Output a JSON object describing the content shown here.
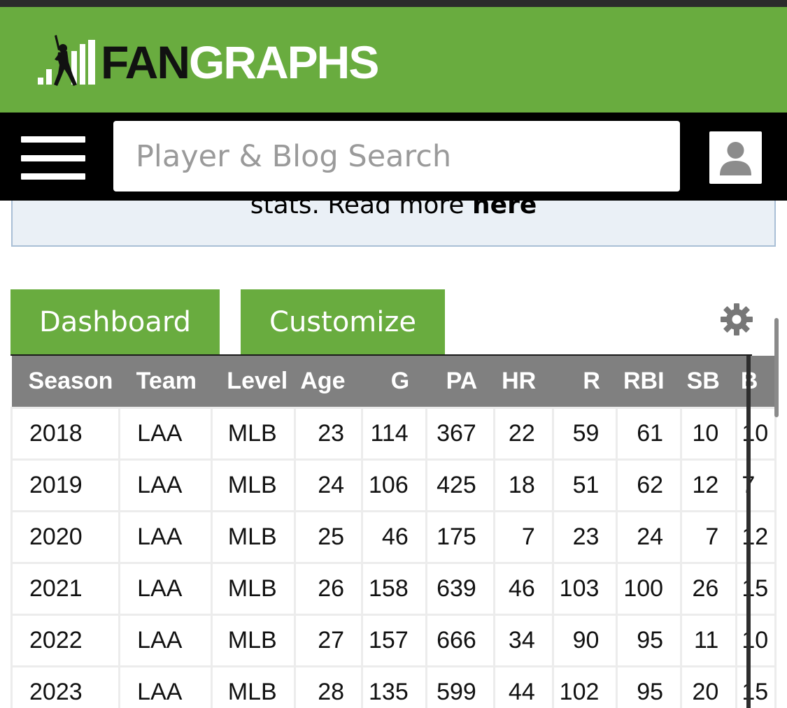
{
  "header": {
    "logo_fan": "FAN",
    "logo_graphs": "GRAPHS",
    "brand_color": "#69ac3f"
  },
  "navbar": {
    "menu_icon": "hamburger-menu-icon",
    "search_placeholder": "Player & Blog Search",
    "user_icon": "user-account-icon"
  },
  "notice": {
    "text": "stats. Read more ",
    "link": "here"
  },
  "tabs": {
    "dashboard": "Dashboard",
    "customize": "Customize",
    "settings_icon": "gear-icon"
  },
  "table": {
    "columns": [
      "Season",
      "Team",
      "Level",
      "Age",
      "G",
      "PA",
      "HR",
      "R",
      "RBI",
      "SB",
      "B"
    ],
    "rows": [
      [
        "2018",
        "LAA",
        "MLB",
        "23",
        "114",
        "367",
        "22",
        "59",
        "61",
        "10",
        "10"
      ],
      [
        "2019",
        "LAA",
        "MLB",
        "24",
        "106",
        "425",
        "18",
        "51",
        "62",
        "12",
        "7"
      ],
      [
        "2020",
        "LAA",
        "MLB",
        "25",
        "46",
        "175",
        "7",
        "23",
        "24",
        "7",
        "12"
      ],
      [
        "2021",
        "LAA",
        "MLB",
        "26",
        "158",
        "639",
        "46",
        "103",
        "100",
        "26",
        "15"
      ],
      [
        "2022",
        "LAA",
        "MLB",
        "27",
        "157",
        "666",
        "34",
        "90",
        "95",
        "11",
        "10"
      ],
      [
        "2023",
        "LAA",
        "MLB",
        "28",
        "135",
        "599",
        "44",
        "102",
        "95",
        "20",
        "15"
      ]
    ]
  }
}
